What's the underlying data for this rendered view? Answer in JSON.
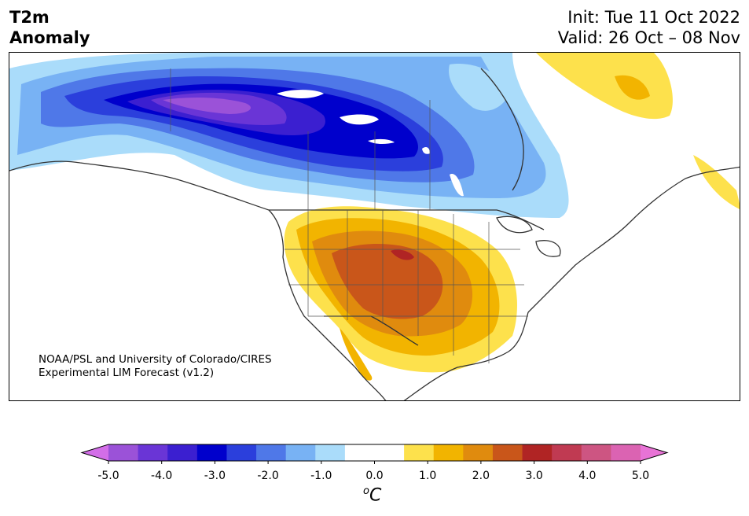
{
  "title": {
    "left_line1": "T2m",
    "left_line2": "Anomaly",
    "right_line1": "Init: Tue 11 Oct 2022",
    "right_line2": "Valid: 26 Oct – 08 Nov"
  },
  "credit": {
    "line1": "NOAA/PSL and University of Colorado/CIRES",
    "line2": "Experimental LIM Forecast (v1.2)"
  },
  "colorbar": {
    "ticks": [
      "-5.0",
      "-4.0",
      "-3.0",
      "-2.0",
      "-1.0",
      "0.0",
      "1.0",
      "2.0",
      "3.0",
      "4.0",
      "5.0"
    ],
    "colors": [
      "#d36ee8",
      "#9b52d8",
      "#6a35d6",
      "#3b1fd0",
      "#0000cc",
      "#2b3fdc",
      "#4f78e8",
      "#78b2f4",
      "#aadcfa",
      "#ffffff",
      "#ffffff",
      "#fde14c",
      "#f2b400",
      "#e08b0e",
      "#c9561a",
      "#b02424",
      "#c03a52",
      "#cd5582",
      "#db63b2",
      "#e873d6"
    ],
    "units": "C",
    "units_sup": "o"
  },
  "map": {
    "region": "North America",
    "variable": "2m temperature anomaly",
    "cold_anomaly": "western/central Canada and northern US plains",
    "warm_anomaly": "southwestern and south-central United States"
  }
}
